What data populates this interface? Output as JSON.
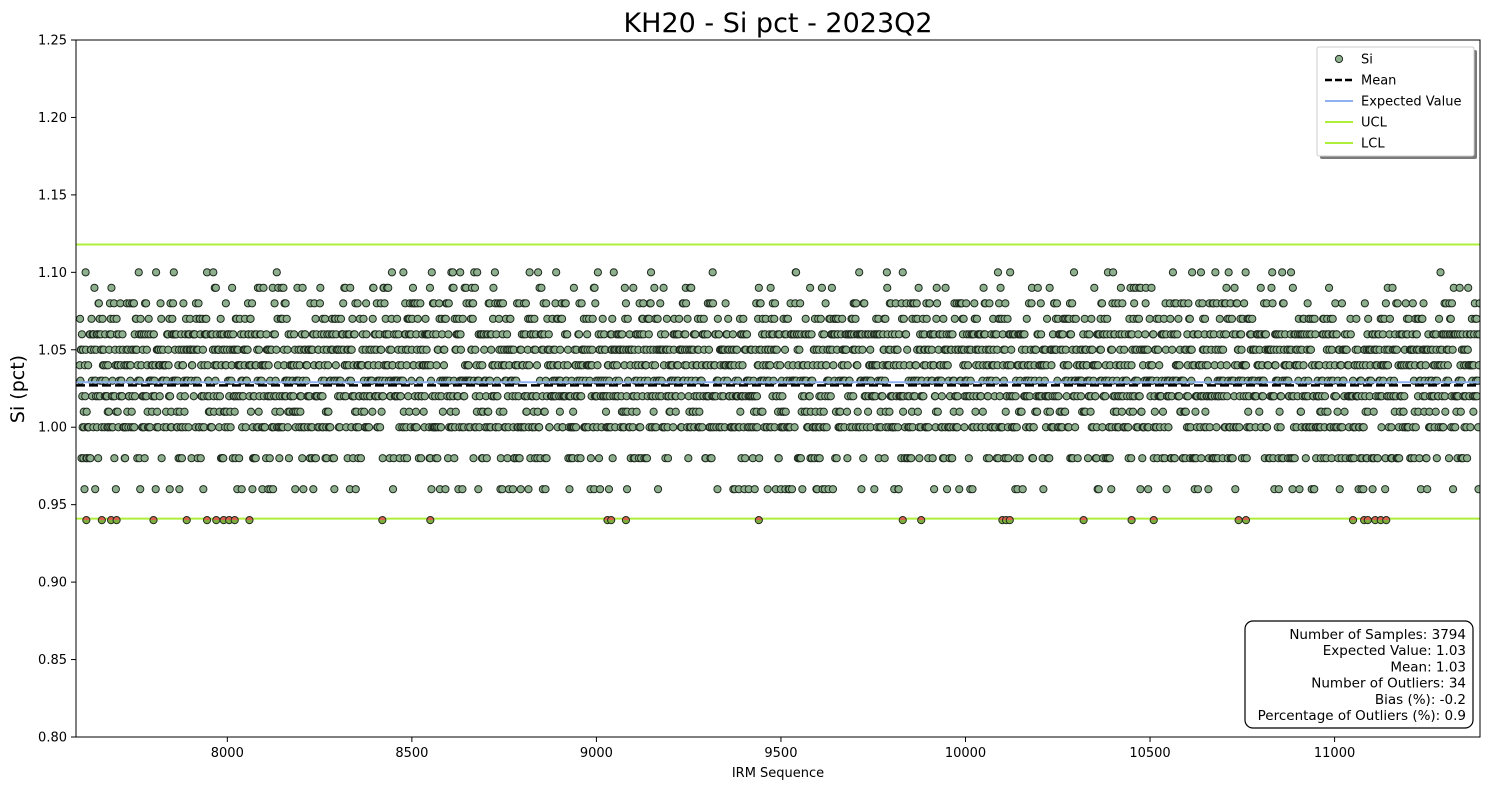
{
  "chart_data": {
    "type": "scatter",
    "title": "KH20 - Si pct - 2023Q2",
    "xlabel": "IRM Sequence",
    "ylabel": "Si (pct)",
    "xlim": [
      7590,
      11394
    ],
    "ylim": [
      0.8,
      1.25
    ],
    "xticks": [
      8000,
      8500,
      9000,
      9500,
      10000,
      10500,
      11000
    ],
    "xtick_labels": [
      "8000",
      "8500",
      "9000",
      "9500",
      "10000",
      "10500",
      "11000"
    ],
    "yticks": [
      0.8,
      0.85,
      0.9,
      0.95,
      1.0,
      1.05,
      1.1,
      1.15,
      1.2,
      1.25
    ],
    "ytick_labels": [
      "0.80",
      "0.85",
      "0.90",
      "0.95",
      "1.00",
      "1.05",
      "1.10",
      "1.15",
      "1.20",
      "1.25"
    ],
    "x_start": 7600,
    "x_end": 11393,
    "value_levels": [
      0.96,
      0.98,
      1.0,
      1.01,
      1.02,
      1.03,
      1.04,
      1.05,
      1.06,
      1.07,
      1.08,
      1.09,
      1.1
    ],
    "value_weights": [
      3,
      6,
      12,
      5,
      13,
      12,
      12,
      12,
      12,
      6,
      5,
      2,
      1
    ],
    "outlier_x": [
      7618,
      7660,
      7685,
      7700,
      7800,
      7890,
      7945,
      7970,
      7990,
      8005,
      8020,
      8060,
      8420,
      8550,
      9030,
      9040,
      9080,
      9440,
      9830,
      9880,
      10100,
      10110,
      10120,
      10320,
      10450,
      10510,
      10740,
      10760,
      11050,
      11080,
      11090,
      11110,
      11125,
      11140
    ],
    "outlier_value": 0.94,
    "series": [
      {
        "name": "Si",
        "marker_fill": "#8fb08f",
        "marker_edge": "#1e2a1e",
        "outlier_fill_top": "#d9604a",
        "outlier_fill_bottom": "#7fae3f"
      },
      {
        "name": "Mean",
        "value": 1.027,
        "color": "#000000",
        "style": "dashed"
      },
      {
        "name": "Expected Value",
        "value": 1.029,
        "color": "#8fb1f0",
        "style": "solid"
      },
      {
        "name": "UCL",
        "value": 1.118,
        "color": "#adef3a",
        "style": "solid"
      },
      {
        "name": "LCL",
        "value": 0.941,
        "color": "#adef3a",
        "style": "solid"
      }
    ],
    "legend_position": "top-right",
    "stats_box": {
      "position": "bottom-right",
      "lines": [
        "Number of Samples: 3794",
        "Expected Value: 1.03",
        "Mean: 1.03",
        "Number of Outliers: 34",
        "Bias (%): -0.2",
        "Percentage of Outliers (%): 0.9"
      ]
    }
  }
}
